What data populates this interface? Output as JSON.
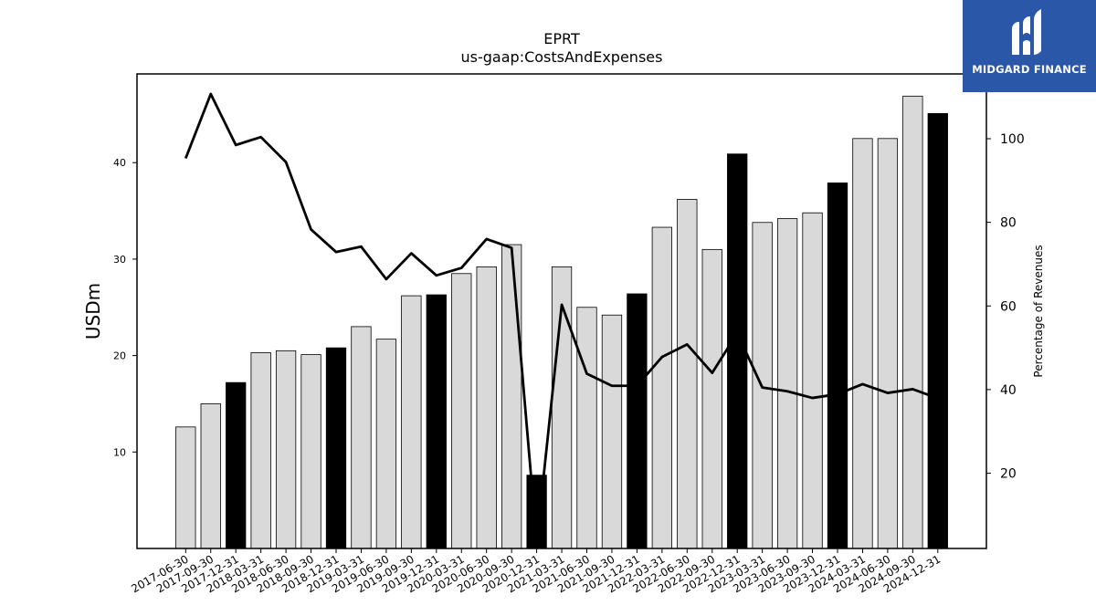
{
  "chart_data": {
    "type": "bar",
    "title": "EPRT",
    "subtitle": "us-gaap:CostsAndExpenses",
    "ylabel": "USDm",
    "y2label": "Percentage of Revenues",
    "ylim": [
      0,
      49.2
    ],
    "y2lim": [
      2,
      115.5
    ],
    "yticks": [
      10,
      20,
      30,
      40
    ],
    "y2ticks": [
      20,
      40,
      60,
      80,
      100
    ],
    "categories": [
      "2017-06-30",
      "2017-09-30",
      "2017-12-31",
      "2018-03-31",
      "2018-06-30",
      "2018-09-30",
      "2018-12-31",
      "2019-03-31",
      "2019-06-30",
      "2019-09-30",
      "2019-12-31",
      "2020-03-31",
      "2020-06-30",
      "2020-09-30",
      "2020-12-31",
      "2021-03-31",
      "2021-06-30",
      "2021-09-30",
      "2021-12-31",
      "2022-03-31",
      "2022-06-30",
      "2022-09-30",
      "2022-12-31",
      "2023-03-31",
      "2023-06-30",
      "2023-09-30",
      "2023-12-31",
      "2024-03-31",
      "2024-06-30",
      "2024-09-30",
      "2024-12-31"
    ],
    "series": [
      {
        "kind": "bar",
        "values": [
          12.6,
          15.0,
          17.2,
          20.3,
          20.5,
          20.1,
          20.8,
          23.0,
          21.7,
          26.2,
          26.3,
          28.5,
          29.2,
          31.5,
          7.6,
          29.2,
          25.0,
          24.2,
          26.4,
          33.3,
          36.2,
          31.0,
          40.9,
          33.8,
          34.2,
          34.8,
          37.9,
          42.5,
          42.5,
          46.9,
          45.1
        ],
        "year_end": [
          false,
          false,
          true,
          false,
          false,
          false,
          true,
          false,
          false,
          false,
          true,
          false,
          false,
          false,
          true,
          false,
          false,
          false,
          true,
          false,
          false,
          false,
          true,
          false,
          false,
          false,
          true,
          false,
          false,
          false,
          true
        ]
      },
      {
        "kind": "line",
        "axis": "right",
        "values": [
          95.3,
          110.7,
          98.5,
          100.4,
          94.4,
          78.3,
          72.9,
          74.2,
          66.4,
          72.6,
          67.3,
          69.1,
          76.0,
          73.9,
          3.5,
          60.3,
          43.8,
          40.9,
          40.9,
          47.8,
          50.8,
          44.0,
          53.5,
          40.5,
          39.6,
          38.0,
          38.9,
          41.3,
          39.2,
          40.1,
          37.9
        ]
      }
    ],
    "colors": {
      "bar": "#d9d9d9",
      "bar_year_end": "#000000",
      "line": "#000000"
    },
    "grid": false
  },
  "logo": {
    "text": "MIDGARD FINANCE",
    "background": "#2a57a8"
  }
}
